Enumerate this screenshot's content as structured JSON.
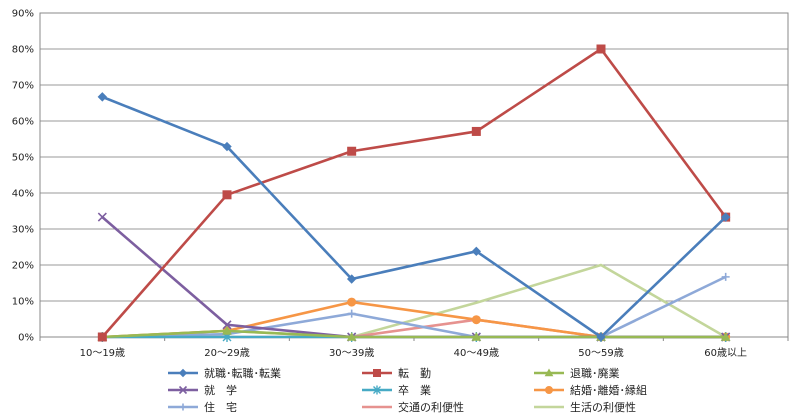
{
  "chart_data": {
    "type": "line",
    "categories": [
      "10～19歳",
      "20～29歳",
      "30～39歳",
      "40～49歳",
      "50～59歳",
      "60歳以上"
    ],
    "ylim": [
      0,
      90
    ],
    "y_ticks": [
      "0%",
      "10%",
      "20%",
      "30%",
      "40%",
      "50%",
      "60%",
      "70%",
      "80%",
      "90%"
    ],
    "grid": true,
    "legend_position": "bottom",
    "series": [
      {
        "name": "就職･転職･転業",
        "color": "#4A7EBB",
        "marker": "diamond",
        "values": [
          66.7,
          52.9,
          16.1,
          23.8,
          0,
          33.3
        ]
      },
      {
        "name": "転　勤",
        "color": "#BE4B48",
        "marker": "square",
        "values": [
          0,
          39.5,
          51.6,
          57.1,
          80,
          33.3
        ]
      },
      {
        "name": "退職･廃業",
        "color": "#98B954",
        "marker": "triangle",
        "values": [
          0,
          1.7,
          0,
          0,
          0,
          0
        ]
      },
      {
        "name": "就　学",
        "color": "#7D5FA0",
        "marker": "x",
        "values": [
          33.3,
          3.4,
          0,
          0,
          0,
          0
        ]
      },
      {
        "name": "卒　業",
        "color": "#46AAC5",
        "marker": "star",
        "values": [
          0,
          0,
          0,
          0,
          0,
          0
        ]
      },
      {
        "name": "結婚･離婚･縁組",
        "color": "#F69646",
        "marker": "circle",
        "values": [
          0,
          1.7,
          9.7,
          4.8,
          0,
          0
        ]
      },
      {
        "name": "住　宅",
        "color": "#8EA9D8",
        "marker": "plus",
        "values": [
          0,
          0.8,
          6.5,
          0,
          0,
          16.7
        ]
      },
      {
        "name": "交通の利便性",
        "color": "#E6928F",
        "marker": "none",
        "values": [
          0,
          0,
          0,
          4.8,
          0,
          0
        ]
      },
      {
        "name": "生活の利便性",
        "color": "#C3D69B",
        "marker": "none",
        "values": [
          0,
          1.7,
          0,
          9.5,
          20,
          0
        ]
      }
    ]
  }
}
